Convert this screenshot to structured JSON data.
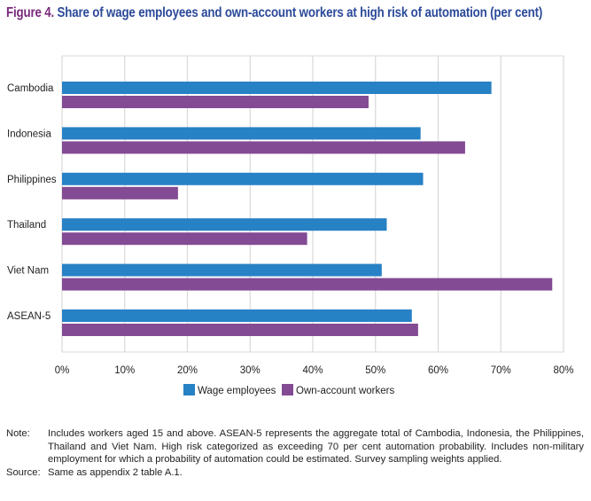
{
  "title": {
    "figure": "Figure 4.",
    "text": "Share of wage employees and own-account workers at high risk of automation (per cent)"
  },
  "colors": {
    "wage": "#2781c5",
    "own": "#834b94",
    "grid": "#d9d9d9"
  },
  "chart_data": {
    "type": "bar",
    "orientation": "horizontal",
    "title": "Share of wage employees and own-account workers at high risk of automation (per cent)",
    "categories": [
      "Cambodia",
      "Indonesia",
      "Philippines",
      "Thailand",
      "Viet Nam",
      "ASEAN-5"
    ],
    "series": [
      {
        "name": "Wage employees",
        "values": [
          68.5,
          57.2,
          57.6,
          51.8,
          51.0,
          55.8
        ]
      },
      {
        "name": "Own-account workers",
        "values": [
          48.9,
          64.3,
          18.5,
          39.1,
          78.2,
          56.8
        ]
      }
    ],
    "xlabel": "",
    "ylabel": "",
    "xlim": [
      0,
      80
    ],
    "xticks": [
      "0%",
      "10%",
      "20%",
      "30%",
      "40%",
      "50%",
      "60%",
      "70%",
      "80%"
    ],
    "grid": true,
    "legend_position": "bottom"
  },
  "notes": {
    "note_label": "Note:",
    "note_text": "Includes workers aged 15 and above. ASEAN-5 represents the aggregate total of Cambodia, Indonesia, the Philippines, Thailand and Viet Nam. High risk categorized as exceeding 70 per cent automation probability. Includes non-military employment for which a probability of automation could be estimated. Survey sampling weights applied.",
    "source_label": "Source:",
    "source_text": "Same as appendix 2 table A.1."
  }
}
